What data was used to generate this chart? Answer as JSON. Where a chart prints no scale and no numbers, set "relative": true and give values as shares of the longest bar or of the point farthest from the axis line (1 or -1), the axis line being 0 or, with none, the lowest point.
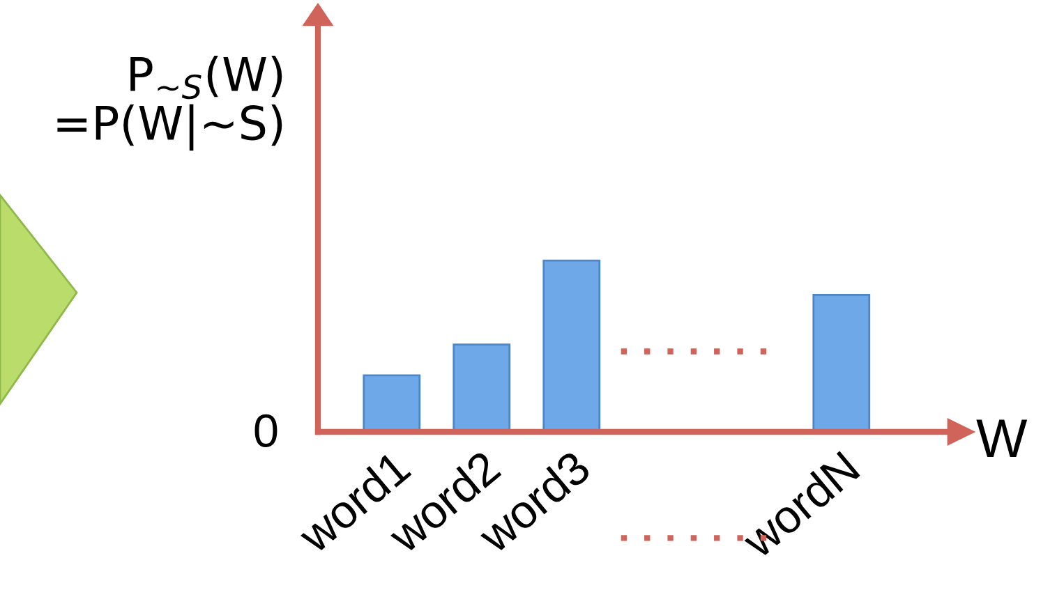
{
  "chart_data": {
    "type": "bar",
    "relative": true,
    "categories": [
      "word1",
      "word2",
      "word3",
      null,
      null,
      "wordN"
    ],
    "values": [
      0.33,
      0.51,
      1,
      null,
      null,
      0.8
    ],
    "color": "#6fa8e8",
    "ylabel": "P$_{∼S}$(W)\n=P(W|∼S)",
    "xlabel": "W",
    "annotations": [
      "0"
    ],
    "grid": false
  }
}
